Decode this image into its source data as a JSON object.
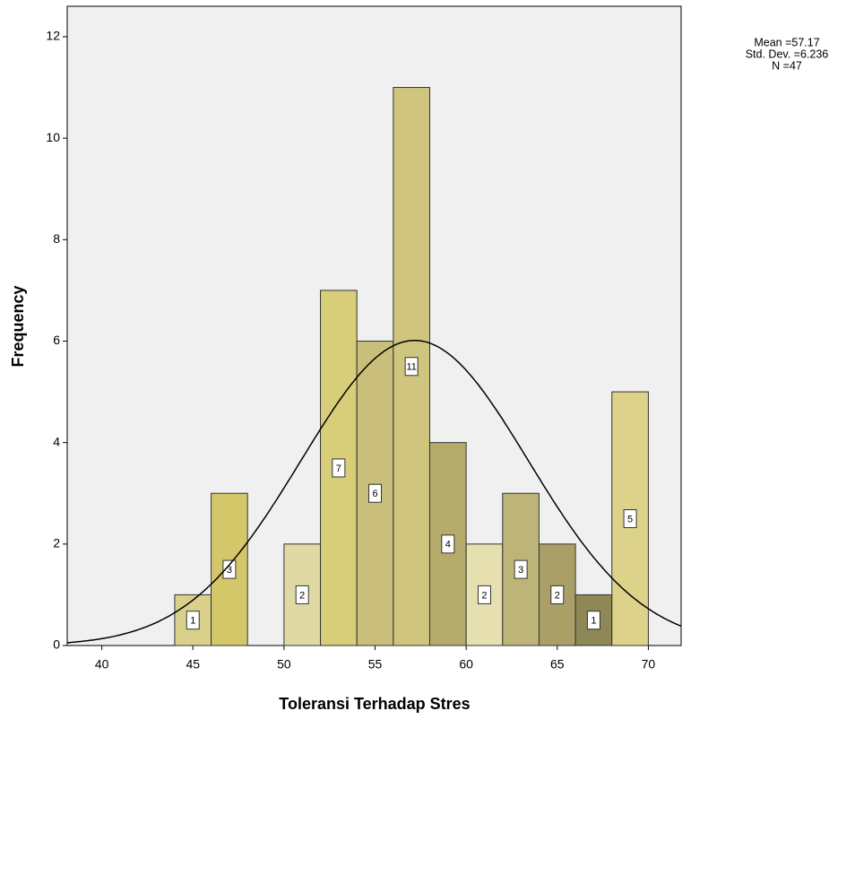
{
  "chart_data": {
    "type": "histogram",
    "x_label": "Toleransi Terhadap Stres",
    "y_label": "Frequency",
    "annotation": [
      "Mean =57.17",
      "Std. Dev. =6.236",
      "N =47"
    ],
    "bins": [
      44,
      46,
      48,
      50,
      52,
      54,
      56,
      58,
      60,
      62,
      64,
      66,
      68,
      70
    ],
    "values": [
      1,
      3,
      0,
      2,
      7,
      6,
      11,
      4,
      2,
      3,
      2,
      1,
      5
    ],
    "value_labels": [
      "1",
      "3",
      null,
      "2",
      "7",
      "6",
      "11",
      "4",
      "2",
      "3",
      "2",
      "1",
      "5"
    ],
    "colors": [
      "#d9d08c",
      "#d4c76a",
      "#d4c76a",
      "#e0d9a6",
      "#d8cd78",
      "#c9bf7a",
      "#cfc57f",
      "#b5ab6a",
      "#e6dfb0",
      "#bdb47a",
      "#aaa067",
      "#8f8755",
      "#ddd28a"
    ],
    "normal_curve": {
      "mean": 57.17,
      "sd": 6.236,
      "n": 47
    },
    "xlim": [
      38.1,
      71.8
    ],
    "ylim": [
      0,
      12.6
    ],
    "xticks": [
      40,
      45,
      50,
      55,
      60,
      65,
      70
    ],
    "yticks": [
      0,
      2,
      4,
      6,
      8,
      10,
      12
    ],
    "background": "#f0f0f0"
  }
}
